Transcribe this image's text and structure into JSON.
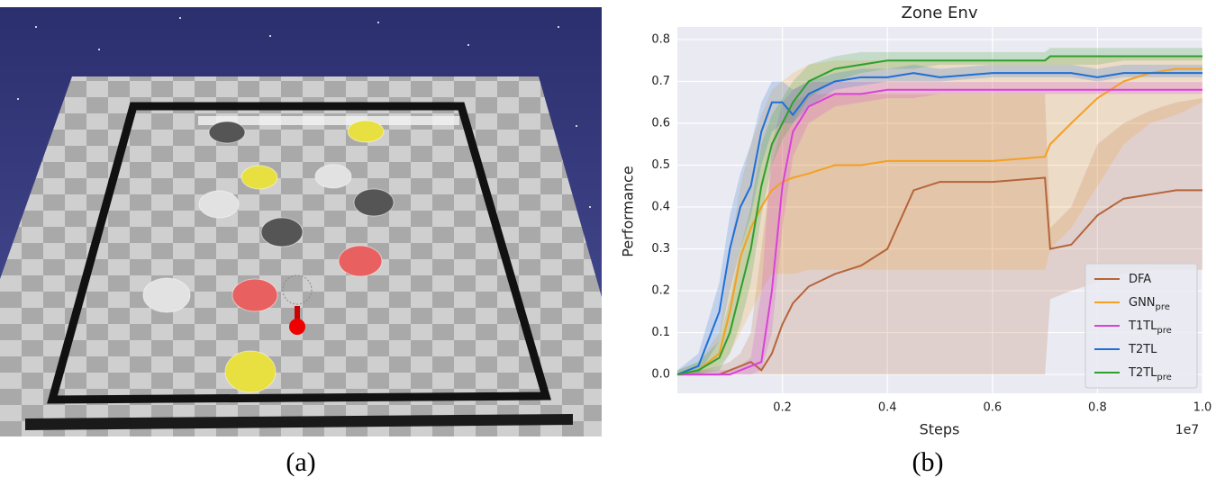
{
  "captions": [
    "(a)",
    "(b)"
  ],
  "chart_data": {
    "type": "line",
    "title": "Zone Env",
    "x_label": "Steps",
    "y_label": "Performance",
    "x_offset_label": "1e7",
    "x": [
      0,
      0.04,
      0.08,
      0.1,
      0.12,
      0.14,
      0.16,
      0.18,
      0.2,
      0.22,
      0.25,
      0.3,
      0.35,
      0.4,
      0.45,
      0.5,
      0.6,
      0.7,
      0.71,
      0.75,
      0.8,
      0.85,
      0.9,
      0.95,
      1.0
    ],
    "xlim": [
      0,
      1.0
    ],
    "xticks": [
      0.2,
      0.4,
      0.6,
      0.8,
      {
        "value": 1.0,
        "label": "1.0"
      }
    ],
    "ylim": [
      -0.045,
      0.83
    ],
    "yticks": [
      {
        "value": 0,
        "label": "0.0"
      },
      0.1,
      0.2,
      0.3,
      0.4,
      0.5,
      0.6,
      0.7,
      0.8
    ],
    "grid": true,
    "legend": "lower right",
    "series": [
      {
        "name": "DFA",
        "color": "#b5653a",
        "values": [
          0,
          0,
          0,
          0.01,
          0.02,
          0.03,
          0.01,
          0.05,
          0.12,
          0.17,
          0.21,
          0.24,
          0.26,
          0.3,
          0.44,
          0.46,
          0.46,
          0.47,
          0.3,
          0.31,
          0.38,
          0.42,
          0.43,
          0.44,
          0.44
        ],
        "lower": [
          0,
          0,
          0,
          0,
          0,
          0,
          0,
          0,
          0,
          0,
          0,
          0,
          0,
          0,
          0,
          0,
          0,
          0,
          0.18,
          0.2,
          0.22,
          0.24,
          0.25,
          0.25,
          0.25
        ],
        "upper": [
          0,
          0.01,
          0.02,
          0.03,
          0.05,
          0.1,
          0.3,
          0.5,
          0.6,
          0.65,
          0.67,
          0.67,
          0.67,
          0.67,
          0.67,
          0.67,
          0.67,
          0.67,
          0.35,
          0.4,
          0.55,
          0.6,
          0.63,
          0.65,
          0.66
        ]
      },
      {
        "name": "GNN",
        "name_sub": "pre",
        "color": "#f5a020",
        "values": [
          0,
          0.01,
          0.05,
          0.15,
          0.28,
          0.35,
          0.4,
          0.44,
          0.46,
          0.47,
          0.48,
          0.5,
          0.5,
          0.51,
          0.51,
          0.51,
          0.51,
          0.52,
          0.55,
          0.6,
          0.66,
          0.7,
          0.72,
          0.73,
          0.73
        ],
        "lower": [
          0,
          0,
          0.02,
          0.05,
          0.1,
          0.15,
          0.2,
          0.24,
          0.24,
          0.24,
          0.25,
          0.25,
          0.25,
          0.25,
          0.25,
          0.25,
          0.25,
          0.25,
          0.3,
          0.35,
          0.45,
          0.55,
          0.6,
          0.62,
          0.65
        ],
        "upper": [
          0.01,
          0.03,
          0.1,
          0.3,
          0.45,
          0.55,
          0.62,
          0.68,
          0.7,
          0.72,
          0.74,
          0.75,
          0.75,
          0.75,
          0.75,
          0.75,
          0.75,
          0.75,
          0.76,
          0.76,
          0.76,
          0.76,
          0.76,
          0.76,
          0.76
        ]
      },
      {
        "name": "T1TL",
        "name_sub": "pre",
        "color": "#d942d9",
        "values": [
          0,
          0,
          0,
          0,
          0.01,
          0.02,
          0.03,
          0.2,
          0.45,
          0.58,
          0.64,
          0.67,
          0.67,
          0.68,
          0.68,
          0.68,
          0.68,
          0.68,
          0.68,
          0.68,
          0.68,
          0.68,
          0.68,
          0.68,
          0.68
        ],
        "lower": [
          0,
          0,
          0,
          0,
          0,
          0,
          0.01,
          0.1,
          0.35,
          0.52,
          0.6,
          0.64,
          0.65,
          0.66,
          0.66,
          0.67,
          0.67,
          0.67,
          0.67,
          0.67,
          0.67,
          0.67,
          0.67,
          0.67,
          0.67
        ],
        "upper": [
          0,
          0.01,
          0.01,
          0.01,
          0.02,
          0.04,
          0.2,
          0.55,
          0.65,
          0.68,
          0.7,
          0.7,
          0.7,
          0.7,
          0.7,
          0.7,
          0.7,
          0.7,
          0.7,
          0.7,
          0.7,
          0.7,
          0.7,
          0.7,
          0.7
        ]
      },
      {
        "name": "T2TL",
        "color": "#1f6fd6",
        "values": [
          0,
          0.02,
          0.15,
          0.3,
          0.4,
          0.45,
          0.58,
          0.65,
          0.65,
          0.62,
          0.67,
          0.7,
          0.71,
          0.71,
          0.72,
          0.71,
          0.72,
          0.72,
          0.72,
          0.72,
          0.71,
          0.72,
          0.72,
          0.72,
          0.72
        ],
        "lower": [
          0,
          0,
          0.08,
          0.2,
          0.3,
          0.38,
          0.5,
          0.58,
          0.6,
          0.6,
          0.64,
          0.68,
          0.69,
          0.7,
          0.7,
          0.7,
          0.71,
          0.71,
          0.71,
          0.71,
          0.7,
          0.71,
          0.71,
          0.71,
          0.71
        ],
        "upper": [
          0.01,
          0.05,
          0.22,
          0.38,
          0.48,
          0.55,
          0.65,
          0.7,
          0.7,
          0.68,
          0.7,
          0.72,
          0.73,
          0.73,
          0.74,
          0.73,
          0.74,
          0.74,
          0.74,
          0.74,
          0.73,
          0.74,
          0.74,
          0.74,
          0.74
        ]
      },
      {
        "name": "T2TL",
        "name_sub": "pre",
        "color": "#2ca02c",
        "values": [
          0,
          0.01,
          0.04,
          0.1,
          0.2,
          0.3,
          0.45,
          0.55,
          0.6,
          0.65,
          0.7,
          0.73,
          0.74,
          0.75,
          0.75,
          0.75,
          0.75,
          0.75,
          0.76,
          0.76,
          0.76,
          0.76,
          0.76,
          0.76,
          0.76
        ],
        "lower": [
          0,
          0,
          0.01,
          0.05,
          0.12,
          0.22,
          0.38,
          0.5,
          0.56,
          0.6,
          0.66,
          0.7,
          0.72,
          0.73,
          0.73,
          0.74,
          0.74,
          0.74,
          0.74,
          0.74,
          0.74,
          0.75,
          0.75,
          0.75,
          0.75
        ],
        "upper": [
          0.01,
          0.03,
          0.08,
          0.18,
          0.3,
          0.4,
          0.55,
          0.62,
          0.66,
          0.7,
          0.74,
          0.76,
          0.77,
          0.77,
          0.77,
          0.77,
          0.77,
          0.77,
          0.78,
          0.78,
          0.78,
          0.78,
          0.78,
          0.78,
          0.78
        ]
      }
    ]
  }
}
